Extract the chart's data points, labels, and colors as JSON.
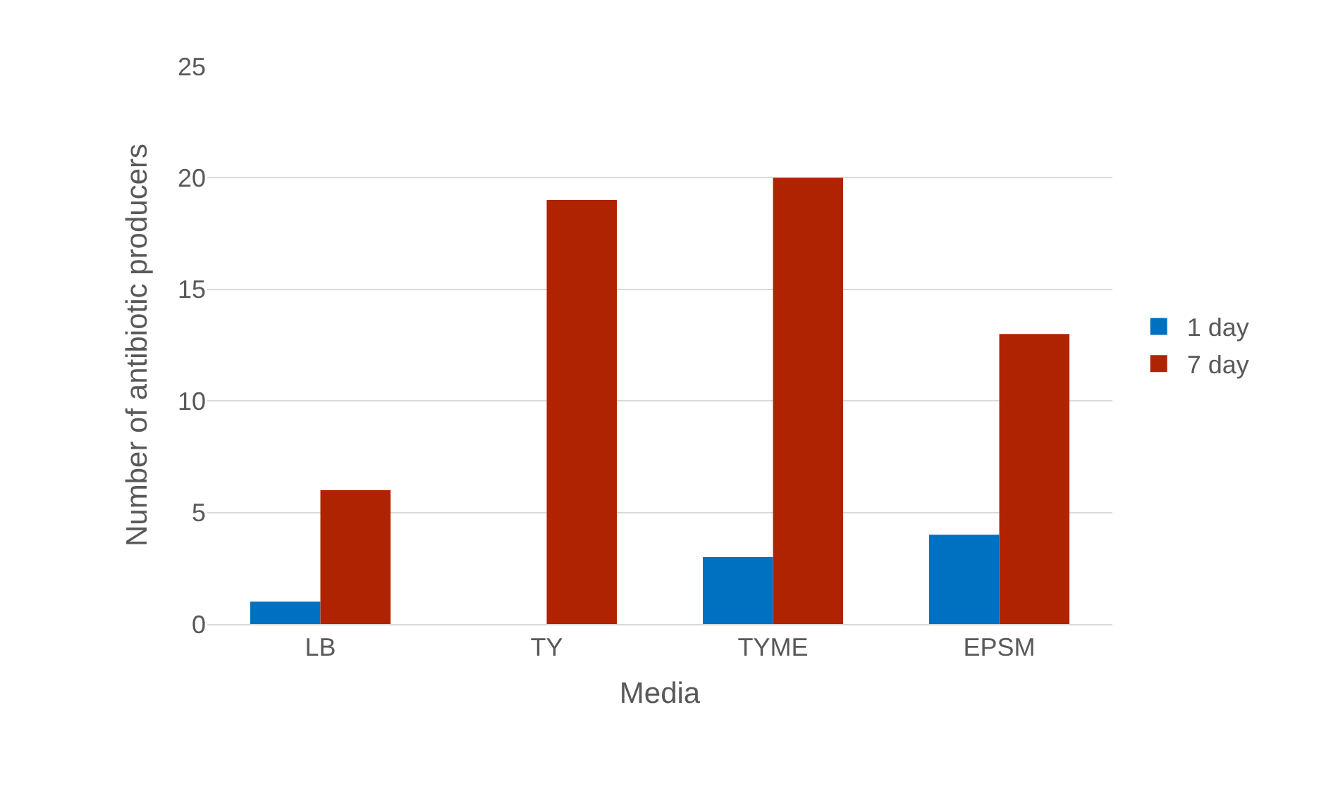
{
  "chart_data": {
    "type": "bar",
    "xlabel": "Media",
    "ylabel": "Number of antibiotic producers",
    "categories": [
      "LB",
      "TY",
      "TYME",
      "EPSM"
    ],
    "series": [
      {
        "name": "1 day",
        "color": "#0070c0",
        "values": [
          1,
          0,
          3,
          4
        ]
      },
      {
        "name": "7 day",
        "color": "#b02300",
        "values": [
          6,
          19,
          20,
          13
        ]
      }
    ],
    "ylim": [
      0,
      25
    ],
    "yticks": [
      0,
      5,
      10,
      15,
      20,
      25
    ],
    "grid": "y",
    "legend": "right"
  }
}
